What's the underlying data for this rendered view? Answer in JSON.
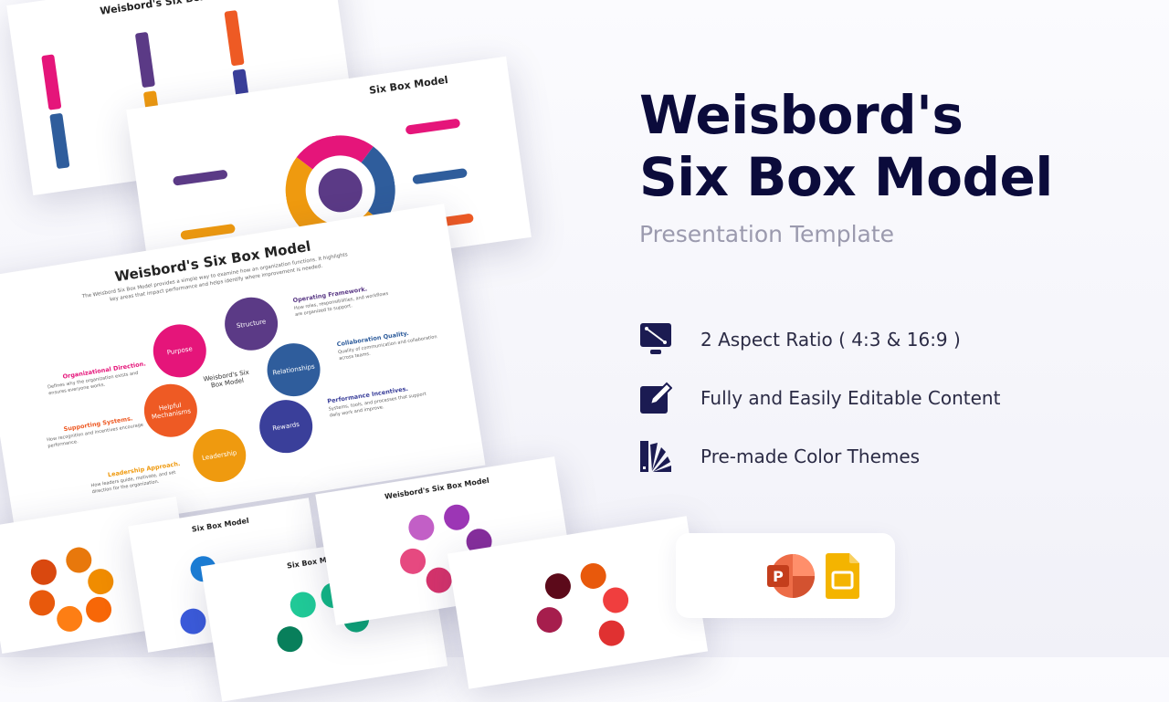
{
  "hero": {
    "title_line1": "Weisbord's",
    "title_line2": "Six Box Model",
    "subtitle": "Presentation Template"
  },
  "features": [
    {
      "icon": "monitor-resize-icon",
      "label": "2 Aspect Ratio ( 4:3 & 16:9 )"
    },
    {
      "icon": "edit-pencil-icon",
      "label": "Fully and Easily Editable Content"
    },
    {
      "icon": "color-swatch-icon",
      "label": "Pre-made Color Themes"
    }
  ],
  "apps": [
    "powerpoint-icon",
    "google-slides-icon"
  ],
  "main_slide": {
    "title": "Weisbord's Six Box Model",
    "intro": "The Weisbord Six Box Model provides a simple way to examine how an organization functions. It highlights key areas that impact performance and helps identify where improvement is needed.",
    "center": "Weisbord's Six Box Model",
    "boxes": [
      {
        "name": "Purpose",
        "color": "#e5157a",
        "heading": "Organizational Direction.",
        "text": "Defines why the organization exists and ensures everyone works."
      },
      {
        "name": "Structure",
        "color": "#5b3a86",
        "heading": "Operating Framework.",
        "text": "How roles, responsibilities, and workflows are organized to support."
      },
      {
        "name": "Relationships",
        "color": "#2f5d9c",
        "heading": "Collaboration Quality.",
        "text": "Quality of communication and collaboration across teams."
      },
      {
        "name": "Helpful Mechanisms",
        "color": "#ee5a24",
        "heading": "Supporting Systems.",
        "text": "How recognition and incentives encourage performance."
      },
      {
        "name": "Rewards",
        "color": "#3a3f9a",
        "heading": "Performance Incentives.",
        "text": "Systems, tools, and processes that support daily work and improve."
      },
      {
        "name": "Leadership",
        "color": "#ef9a0f",
        "heading": "Leadership Approach.",
        "text": "How leaders guide, motivate, and set direction for the organization."
      }
    ]
  },
  "background_slides": {
    "title": "Weisbord's Six Box Model",
    "title_partial": "Six Box Model",
    "labels": [
      "Purpose",
      "Structure",
      "Relationships",
      "Rewards",
      "Leadership",
      "Helpful Mechanisms"
    ]
  }
}
